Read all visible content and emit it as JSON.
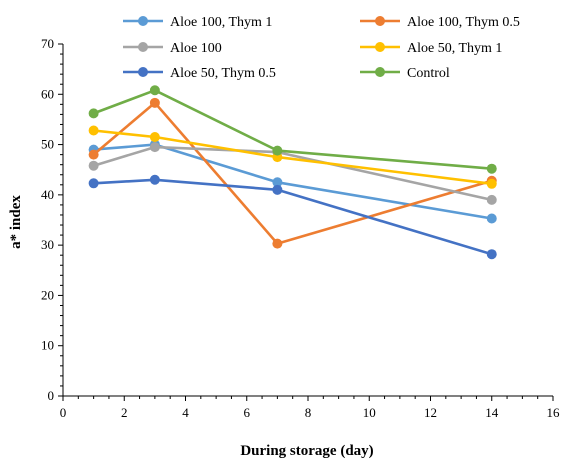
{
  "chart_data": {
    "type": "line",
    "title": "",
    "xlabel": "During storage (day)",
    "ylabel": "a* index",
    "xlim": [
      0,
      16
    ],
    "ylim": [
      0,
      70
    ],
    "x_major_ticks": [
      0,
      2,
      4,
      6,
      8,
      10,
      12,
      14,
      16
    ],
    "y_major_ticks": [
      0,
      10,
      20,
      30,
      40,
      50,
      60,
      70
    ],
    "grid": false,
    "legend_position": "top",
    "series": [
      {
        "name": "Aloe 100, Thym 1",
        "color": "#5B9BD5",
        "x": [
          1,
          3,
          7,
          14
        ],
        "y": [
          49.0,
          50.0,
          42.5,
          35.3
        ]
      },
      {
        "name": "Aloe 100, Thym 0.5",
        "color": "#ED7D31",
        "x": [
          1,
          3,
          7,
          14
        ],
        "y": [
          48.0,
          58.3,
          30.3,
          42.8
        ]
      },
      {
        "name": "Aloe 100",
        "color": "#A5A5A5",
        "x": [
          1,
          3,
          7,
          14
        ],
        "y": [
          45.8,
          49.5,
          48.5,
          39.0
        ]
      },
      {
        "name": "Aloe 50, Thym 1",
        "color": "#FFC000",
        "x": [
          1,
          3,
          7,
          14
        ],
        "y": [
          52.8,
          51.5,
          47.5,
          42.2
        ]
      },
      {
        "name": "Aloe 50, Thym 0.5",
        "color": "#4472C4",
        "x": [
          1,
          3,
          7,
          14
        ],
        "y": [
          42.3,
          43.0,
          41.0,
          28.2
        ]
      },
      {
        "name": "Control",
        "color": "#70AD47",
        "x": [
          1,
          3,
          7,
          14
        ],
        "y": [
          56.2,
          60.8,
          48.8,
          45.2
        ]
      }
    ]
  }
}
